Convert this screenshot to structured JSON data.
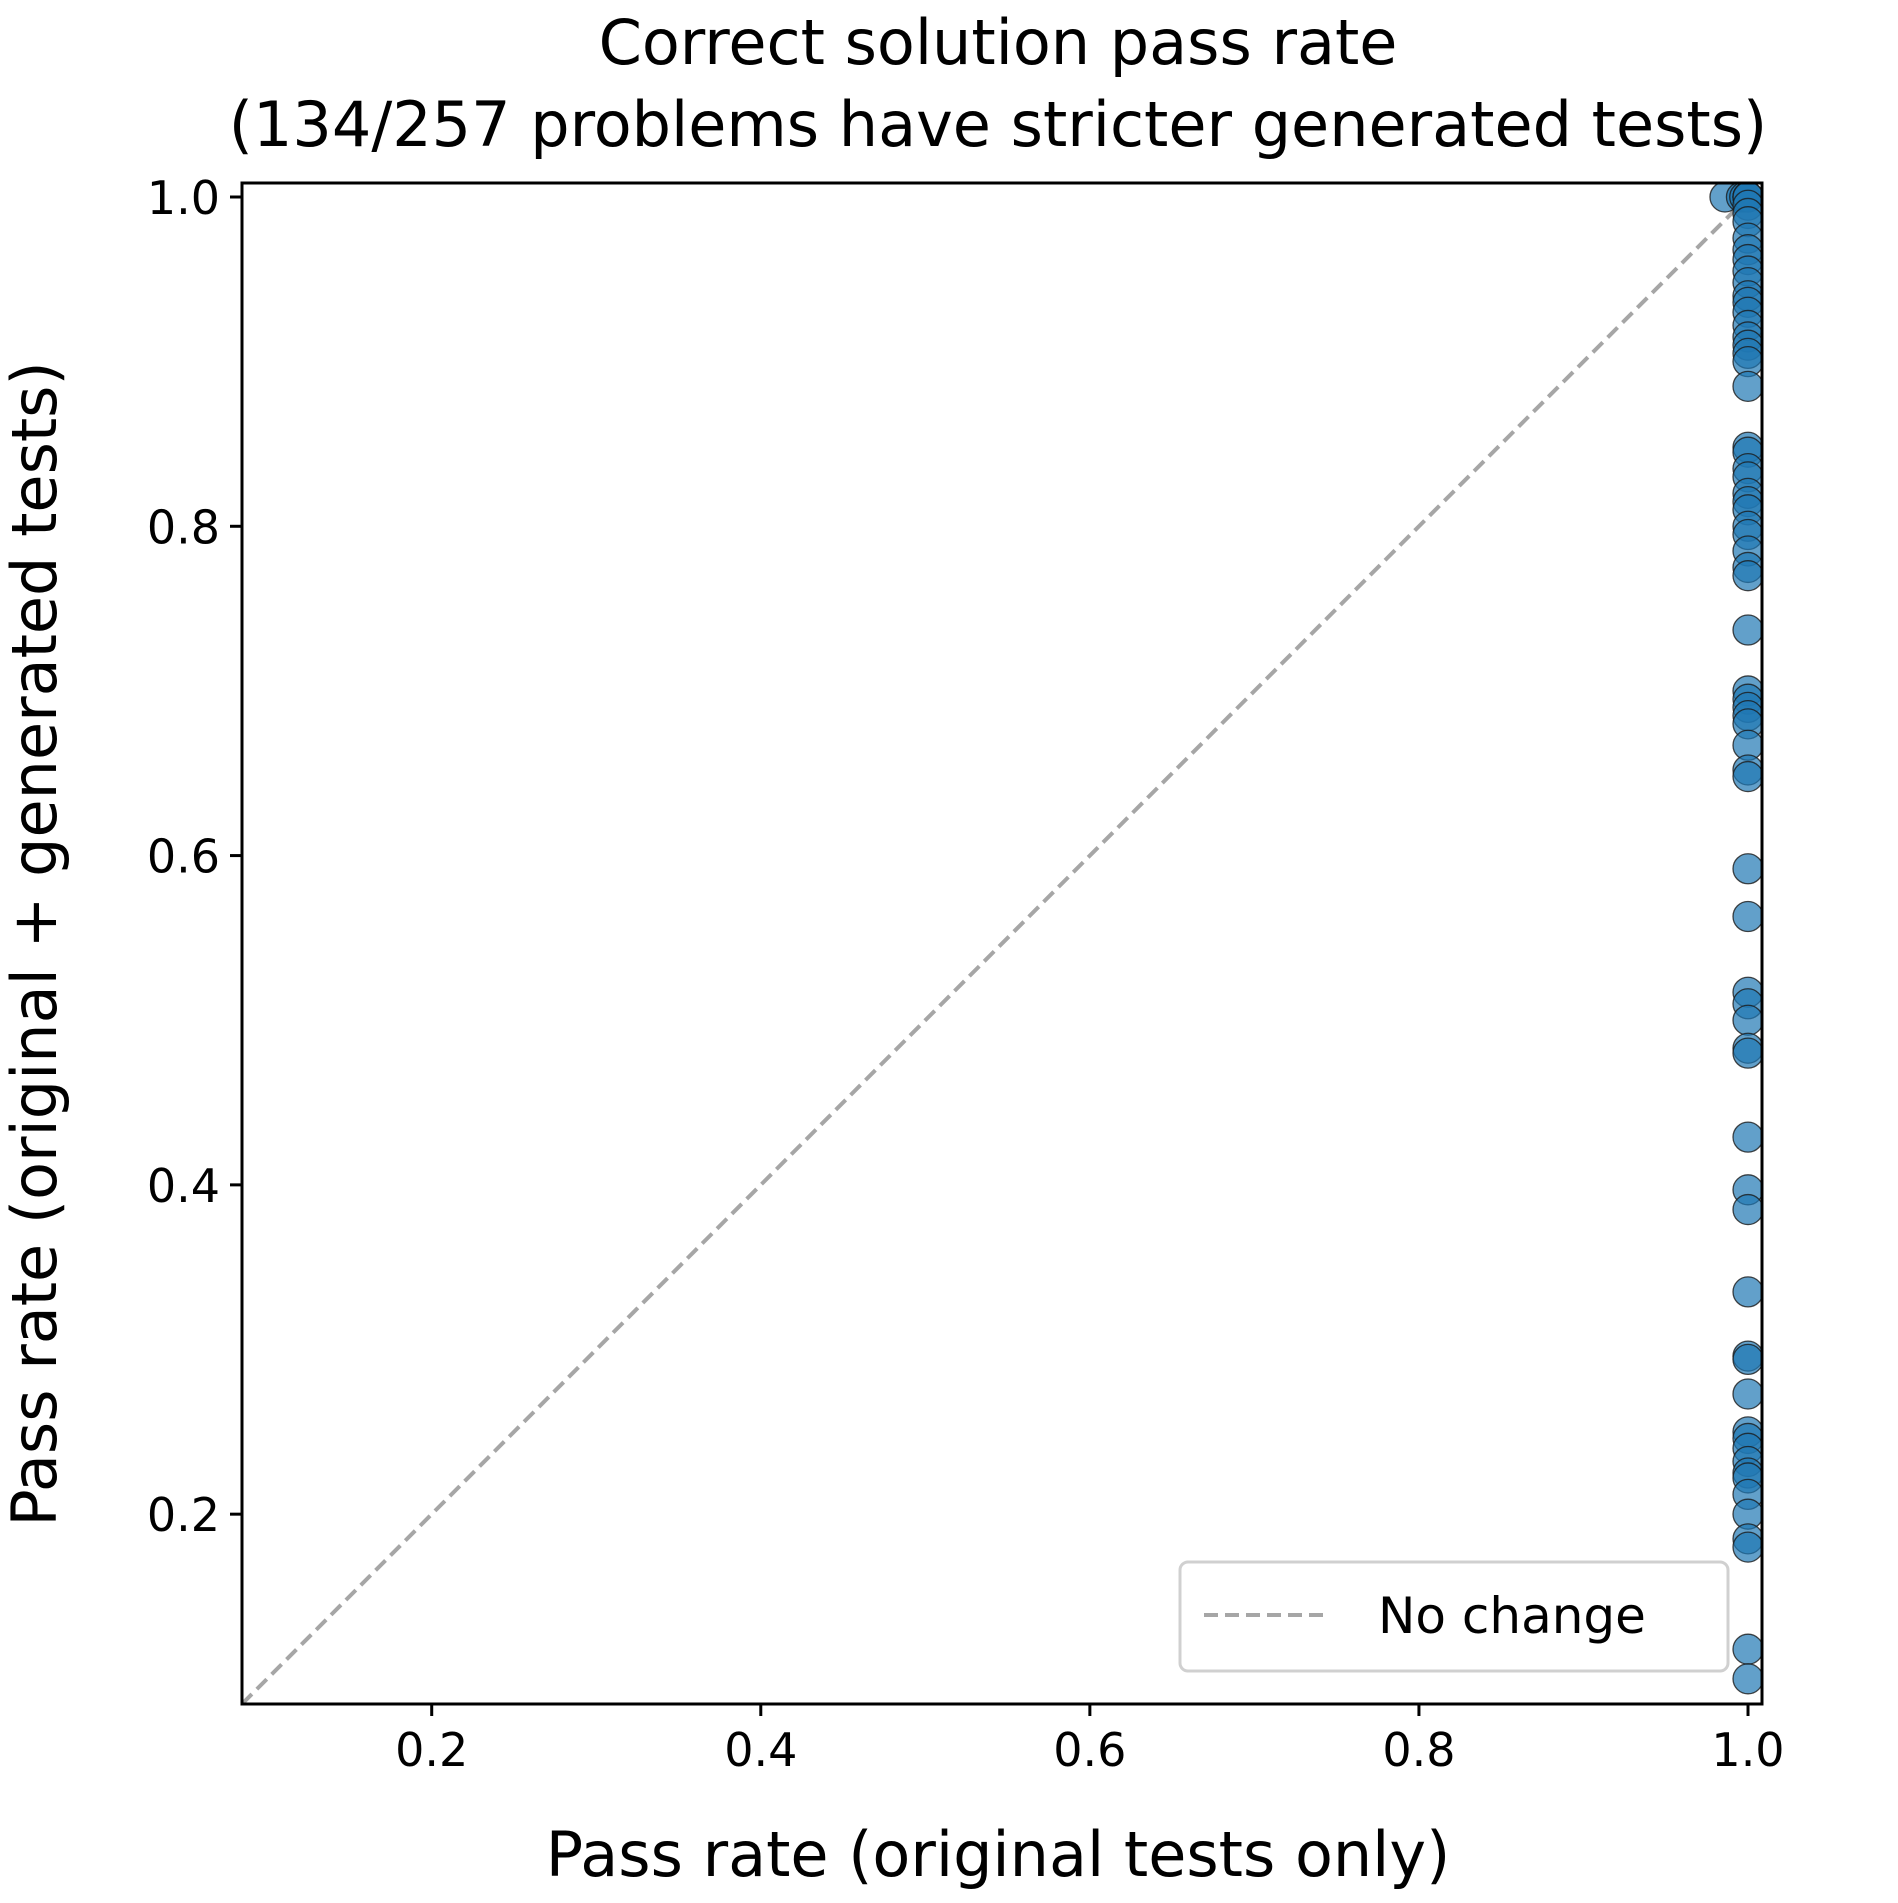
{
  "chart_data": {
    "type": "scatter",
    "title": [
      "Correct solution pass rate",
      "(134/257 problems have stricter generated tests)"
    ],
    "xlabel": "Pass rate (original tests only)",
    "ylabel": "Pass rate (original + generated tests)",
    "xlim": [
      0.0847,
      1.0085
    ],
    "ylim": [
      0.0847,
      1.0085
    ],
    "xticks": [
      0.2,
      0.4,
      0.6,
      0.8,
      1.0
    ],
    "yticks": [
      0.2,
      0.4,
      0.6,
      0.8,
      1.0
    ],
    "xtick_labels": [
      "0.2",
      "0.4",
      "0.6",
      "0.8",
      "1.0"
    ],
    "ytick_labels": [
      "0.2",
      "0.4",
      "0.6",
      "0.8",
      "1.0"
    ],
    "grid": false,
    "legend": {
      "position": "lower-right",
      "entries": [
        "No change"
      ]
    },
    "reference_line": {
      "name": "No change",
      "style": "dashed",
      "color": "#a6a6a6",
      "from": [
        0.0847,
        0.0847
      ],
      "to": [
        1.0,
        1.0
      ]
    },
    "series": [
      {
        "color": "#1f77b4",
        "edgecolor": "#1a1a1a",
        "alpha": 0.7,
        "points": [
          [
            0.986,
            1.0
          ],
          [
            0.996,
            1.0
          ],
          [
            0.998,
            1.0
          ],
          [
            1.0,
            1.0
          ],
          [
            1.0,
            1.0
          ],
          [
            1.0,
            1.0
          ],
          [
            1.0,
            0.995
          ],
          [
            1.0,
            0.99
          ],
          [
            1.0,
            0.985
          ],
          [
            1.0,
            0.975
          ],
          [
            1.0,
            0.968
          ],
          [
            1.0,
            0.962
          ],
          [
            1.0,
            0.955
          ],
          [
            1.0,
            0.948
          ],
          [
            1.0,
            0.94
          ],
          [
            1.0,
            0.936
          ],
          [
            1.0,
            0.93
          ],
          [
            1.0,
            0.922
          ],
          [
            1.0,
            0.915
          ],
          [
            1.0,
            0.91
          ],
          [
            1.0,
            0.905
          ],
          [
            1.0,
            0.9
          ],
          [
            1.0,
            0.885
          ],
          [
            1.0,
            0.848
          ],
          [
            1.0,
            0.845
          ],
          [
            1.0,
            0.835
          ],
          [
            1.0,
            0.83
          ],
          [
            1.0,
            0.82
          ],
          [
            1.0,
            0.815
          ],
          [
            1.0,
            0.81
          ],
          [
            1.0,
            0.8
          ],
          [
            1.0,
            0.795
          ],
          [
            1.0,
            0.785
          ],
          [
            1.0,
            0.775
          ],
          [
            1.0,
            0.77
          ],
          [
            1.0,
            0.737
          ],
          [
            1.0,
            0.7
          ],
          [
            1.0,
            0.695
          ],
          [
            1.0,
            0.69
          ],
          [
            1.0,
            0.685
          ],
          [
            1.0,
            0.68
          ],
          [
            1.0,
            0.667
          ],
          [
            1.0,
            0.652
          ],
          [
            1.0,
            0.648
          ],
          [
            1.0,
            0.592
          ],
          [
            1.0,
            0.563
          ],
          [
            1.0,
            0.517
          ],
          [
            1.0,
            0.51
          ],
          [
            1.0,
            0.5
          ],
          [
            1.0,
            0.483
          ],
          [
            1.0,
            0.48
          ],
          [
            1.0,
            0.429
          ],
          [
            1.0,
            0.397
          ],
          [
            1.0,
            0.385
          ],
          [
            1.0,
            0.335
          ],
          [
            1.0,
            0.296
          ],
          [
            1.0,
            0.294
          ],
          [
            1.0,
            0.273
          ],
          [
            1.0,
            0.25
          ],
          [
            1.0,
            0.246
          ],
          [
            1.0,
            0.24
          ],
          [
            1.0,
            0.232
          ],
          [
            1.0,
            0.225
          ],
          [
            1.0,
            0.222
          ],
          [
            1.0,
            0.212
          ],
          [
            1.0,
            0.2
          ],
          [
            1.0,
            0.185
          ],
          [
            1.0,
            0.18
          ],
          [
            1.0,
            0.118
          ],
          [
            1.0,
            0.1
          ]
        ]
      }
    ]
  }
}
